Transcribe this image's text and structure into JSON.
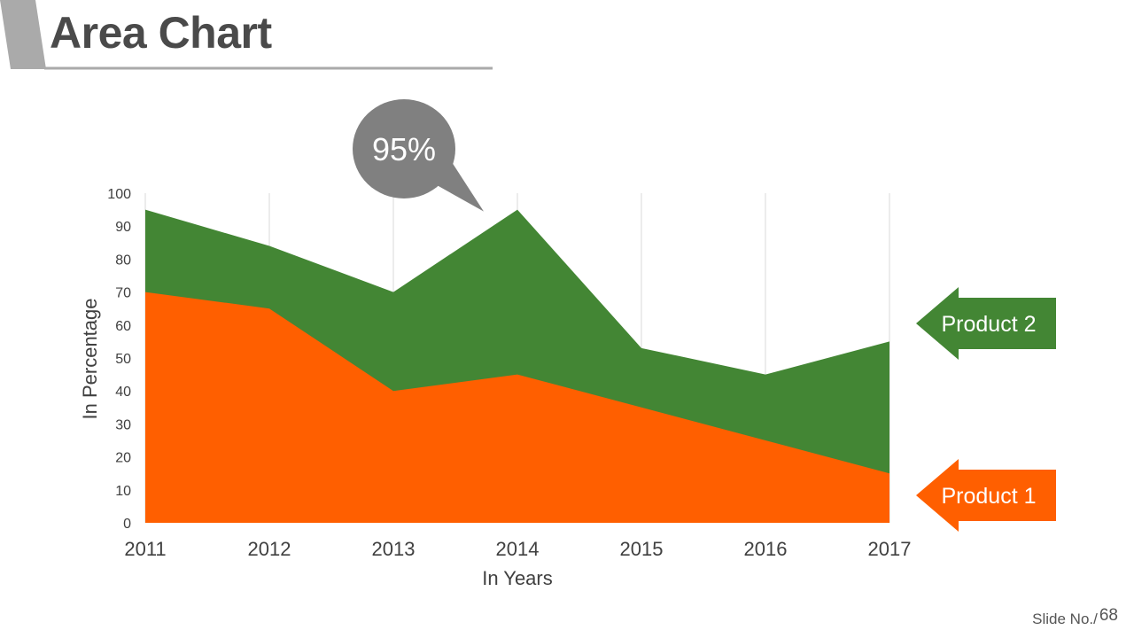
{
  "slide": {
    "title": "Area Chart",
    "number_label": "Slide No./",
    "number": "68"
  },
  "callout": {
    "text": "95%",
    "color": "#808080"
  },
  "colors": {
    "product1": "#ff5f00",
    "product2": "#438634",
    "grid": "#d9d9d9",
    "text": "#404040"
  },
  "chart_data": {
    "type": "area",
    "title": "",
    "xlabel": "In Years",
    "ylabel": "In Percentage",
    "categories": [
      "2011",
      "2012",
      "2013",
      "2014",
      "2015",
      "2016",
      "2017"
    ],
    "ylim": [
      0,
      100
    ],
    "yticks": [
      0,
      10,
      20,
      30,
      40,
      50,
      60,
      70,
      80,
      90,
      100
    ],
    "series": [
      {
        "name": "Product 1",
        "values": [
          70,
          65,
          40,
          45,
          35,
          25,
          15
        ]
      },
      {
        "name": "Product 2",
        "values": [
          95,
          84,
          70,
          95,
          53,
          45,
          55
        ]
      }
    ],
    "legend": "right",
    "annotations": [
      {
        "category": "2014",
        "text": "95%"
      }
    ]
  }
}
